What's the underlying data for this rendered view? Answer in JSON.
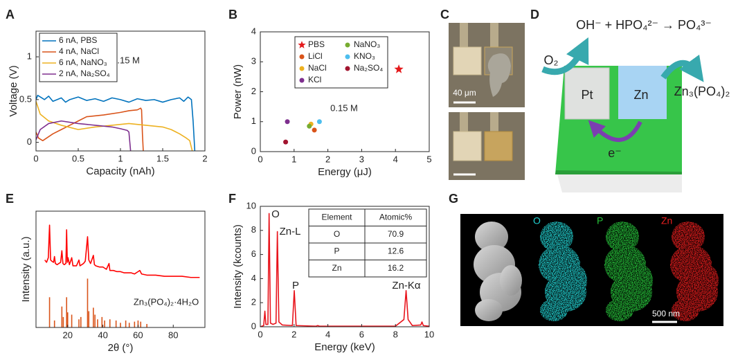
{
  "panel_labels": [
    "A",
    "B",
    "C",
    "D",
    "E",
    "F",
    "G"
  ],
  "chart_data": [
    {
      "type": "line",
      "xlabel": "Capacity (nAh)",
      "ylabel": "Voltage (V)",
      "xlim": [
        0,
        2
      ],
      "xticks": [
        0,
        0.5,
        1,
        1.5,
        2
      ],
      "ylim": [
        -0.1,
        1.3
      ],
      "yticks": [
        0,
        0.5,
        1
      ],
      "legend": "upper left",
      "annotations": [
        "0.15 M"
      ],
      "series": [
        {
          "name": "6 nA, PBS",
          "color": "#0072bd",
          "x": [
            0,
            0.02,
            0.1,
            0.15,
            0.2,
            0.3,
            0.35,
            0.4,
            0.5,
            0.6,
            0.7,
            0.8,
            0.9,
            1.0,
            1.1,
            1.2,
            1.3,
            1.4,
            1.5,
            1.6,
            1.7,
            1.75,
            1.8,
            1.84,
            1.86,
            1.88
          ],
          "values": [
            0.5,
            0.55,
            0.5,
            0.54,
            0.48,
            0.52,
            0.47,
            0.5,
            0.53,
            0.49,
            0.51,
            0.48,
            0.52,
            0.5,
            0.47,
            0.51,
            0.49,
            0.5,
            0.47,
            0.5,
            0.52,
            0.48,
            0.53,
            0.5,
            0.25,
            -0.1
          ]
        },
        {
          "name": "4 nA, NaCl",
          "color": "#d95319",
          "x": [
            0,
            0.03,
            0.08,
            0.2,
            0.3,
            0.4,
            0.5,
            0.6,
            0.8,
            1.0,
            1.1,
            1.2,
            1.24,
            1.25,
            1.26,
            1.27
          ],
          "values": [
            0.12,
            0.05,
            0.02,
            0.1,
            0.15,
            0.2,
            0.25,
            0.3,
            0.32,
            0.35,
            0.37,
            0.38,
            0.4,
            0.38,
            0.1,
            -0.1
          ]
        },
        {
          "name": "6 nA, NaNO₃",
          "color": "#edb120",
          "x": [
            0,
            0.05,
            0.15,
            0.3,
            0.5,
            0.7,
            0.9,
            1.1,
            1.3,
            1.5,
            1.6,
            1.7,
            1.78,
            1.82,
            1.85
          ],
          "values": [
            0.48,
            0.33,
            0.25,
            0.2,
            0.15,
            0.18,
            0.2,
            0.22,
            0.2,
            0.18,
            0.15,
            0.1,
            0.05,
            0.02,
            -0.1
          ]
        },
        {
          "name": "2 nA, Na₂SO₄",
          "color": "#7e2f8e",
          "x": [
            0,
            0.05,
            0.15,
            0.3,
            0.5,
            0.7,
            0.9,
            1.0,
            1.08,
            1.1,
            1.12
          ],
          "values": [
            0.03,
            0.15,
            0.22,
            0.25,
            0.22,
            0.2,
            0.18,
            0.16,
            0.14,
            0.12,
            -0.1
          ]
        }
      ]
    },
    {
      "type": "scatter",
      "xlabel": "Energy (μJ)",
      "ylabel": "Power (nW)",
      "xlim": [
        0,
        5
      ],
      "xticks": [
        0,
        1,
        2,
        3,
        4,
        5
      ],
      "ylim": [
        0,
        4
      ],
      "yticks": [
        0,
        1,
        2,
        3,
        4
      ],
      "legend": "upper center",
      "annotations": [
        "0.15 M"
      ],
      "series": [
        {
          "name": "PBS",
          "color": "#e41a1c",
          "marker": "star",
          "x": [
            4.1
          ],
          "values": [
            2.75
          ]
        },
        {
          "name": "LiCl",
          "color": "#d95319",
          "marker": "circle",
          "x": [
            1.6
          ],
          "values": [
            0.72
          ]
        },
        {
          "name": "NaCl",
          "color": "#edb120",
          "marker": "circle",
          "x": [
            1.5
          ],
          "values": [
            0.92
          ]
        },
        {
          "name": "KCl",
          "color": "#7e2f8e",
          "marker": "circle",
          "x": [
            0.8
          ],
          "values": [
            1.0
          ]
        },
        {
          "name": "NaNO₃",
          "color": "#77ac30",
          "marker": "circle",
          "x": [
            1.45
          ],
          "values": [
            0.85
          ]
        },
        {
          "name": "KNO₃",
          "color": "#4dbeee",
          "marker": "circle",
          "x": [
            1.75
          ],
          "values": [
            1.0
          ]
        },
        {
          "name": "Na₂SO₄",
          "color": "#a2142f",
          "marker": "circle",
          "x": [
            0.75
          ],
          "values": [
            0.32
          ]
        }
      ]
    },
    {
      "type": "line",
      "xlabel": "2θ (°)",
      "ylabel": "Intensity (a.u.)",
      "xlim": [
        2,
        98
      ],
      "xticks": [
        20,
        40,
        60,
        80
      ],
      "ylim": [
        0,
        100
      ],
      "annotations": [
        "Zn₃(PO₄)₂·4H₂O"
      ],
      "series": [
        {
          "color": "#ff0000",
          "x": [
            7,
            8,
            9,
            9.7,
            10.3,
            11,
            12,
            12.5,
            13,
            14,
            15,
            16,
            16.7,
            17.3,
            18,
            19,
            19.4,
            19.8,
            20.2,
            21,
            22.3,
            23,
            25,
            26.4,
            27,
            28,
            29,
            30,
            31.3,
            32,
            33,
            34.6,
            35.2,
            36,
            38,
            40,
            42,
            43.5,
            44,
            46,
            48,
            50,
            52,
            54,
            56,
            58,
            60,
            61,
            62,
            65,
            70,
            75,
            80,
            85,
            90,
            95
          ],
          "values": [
            58,
            56,
            60,
            88,
            58,
            57,
            56,
            61,
            55,
            54,
            55,
            56,
            66,
            55,
            54,
            55,
            84,
            56,
            60,
            54,
            60,
            53,
            53,
            58,
            53,
            54,
            55,
            57,
            78,
            58,
            55,
            62,
            54,
            53,
            52,
            52,
            50,
            55,
            49,
            49,
            48,
            48,
            47,
            47,
            47,
            46,
            48,
            49,
            46,
            45,
            45,
            44,
            44,
            44,
            43,
            43
          ]
        },
        {
          "color": "#d95319",
          "style": "stem",
          "x": [
            9.7,
            12.5,
            16.7,
            17.5,
            19.4,
            20,
            22.3,
            26.4,
            27.5,
            31.3,
            32,
            34.6,
            35.5,
            37,
            39.5,
            41,
            44,
            47.5,
            50,
            53,
            55,
            58,
            60,
            61.5,
            65
          ],
          "values": [
            26,
            6,
            18,
            9,
            26,
            13,
            11,
            7,
            9,
            42,
            14,
            17,
            11,
            7,
            9,
            6,
            7,
            6,
            4,
            6,
            4,
            5,
            6,
            5,
            3
          ]
        }
      ]
    },
    {
      "type": "line",
      "xlabel": "Energy (keV)",
      "ylabel": "Intensity (kcounts)",
      "xlim": [
        0,
        10
      ],
      "xticks": [
        0,
        2,
        4,
        6,
        8,
        10
      ],
      "ylim": [
        0,
        10
      ],
      "yticks": [
        0,
        2,
        4,
        6,
        8,
        10
      ],
      "annotations": [
        "O",
        "Zn-L",
        "P",
        "Zn-Kα"
      ],
      "series": [
        {
          "color": "#e8141c",
          "x": [
            0,
            0.2,
            0.27,
            0.33,
            0.45,
            0.52,
            0.6,
            0.75,
            0.93,
            1.01,
            1.1,
            1.3,
            1.9,
            2.01,
            2.12,
            3.3,
            3.4,
            3.5,
            8.0,
            8.5,
            8.63,
            8.75,
            9.0,
            9.5,
            9.57,
            9.65,
            10
          ],
          "values": [
            0,
            0.1,
            1.3,
            0.2,
            0.2,
            9.4,
            0.3,
            0.2,
            0.3,
            7.9,
            0.4,
            0.15,
            0.1,
            3.0,
            0.1,
            0.05,
            0.1,
            0.05,
            0.05,
            0.6,
            3.0,
            0.6,
            0.1,
            0.15,
            0.4,
            0.1,
            0.05
          ]
        }
      ],
      "table": {
        "header": [
          "Element",
          "Atomic%"
        ],
        "rows": [
          [
            "O",
            70.9
          ],
          [
            "P",
            12.6
          ],
          [
            "Zn",
            16.2
          ]
        ]
      }
    }
  ],
  "micrograph": {
    "scale_bar": "40 μm"
  },
  "diagram": {
    "equation": "OH⁻ + HPO₄²⁻ → PO₄³⁻",
    "reactant": "O₂",
    "electrode_1": "Pt",
    "electrode_2": "Zn",
    "product": "Zn₃(PO₄)₂",
    "electron": "e⁻"
  },
  "eds_map": {
    "channels": [
      "O",
      "P",
      "Zn"
    ],
    "scale_bar": "500 nm"
  }
}
